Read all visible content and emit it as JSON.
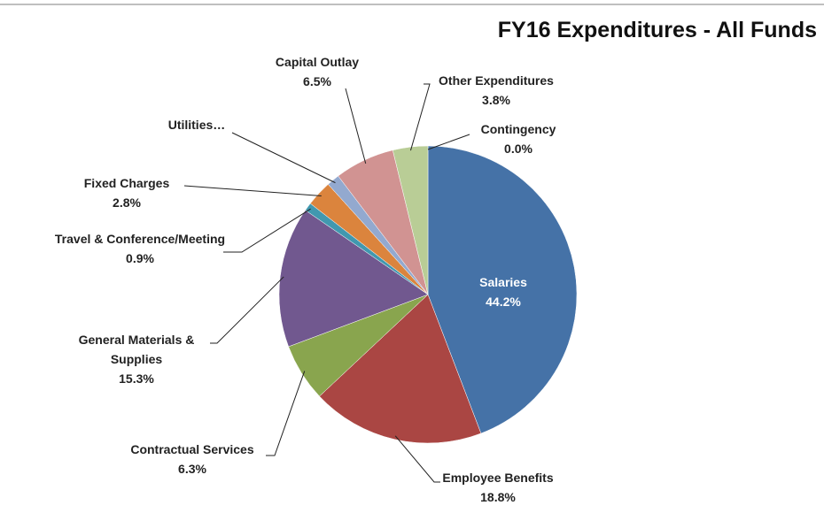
{
  "chart_data": {
    "type": "pie",
    "title": "FY16 Expenditures - All Funds",
    "categories": [
      "Salaries",
      "Employee Benefits",
      "Contractual Services",
      "General Materials & Supplies",
      "Travel & Conference/Meeting",
      "Fixed Charges",
      "Utilities…",
      "Capital Outlay",
      "Other Expenditures",
      "Contingency"
    ],
    "values": [
      44.2,
      18.8,
      6.3,
      15.3,
      0.9,
      2.8,
      1.4,
      6.5,
      3.8,
      0.0
    ],
    "value_labels": [
      "44.2%",
      "18.8%",
      "6.3%",
      "15.3%",
      "0.9%",
      "2.8%",
      null,
      "6.5%",
      "3.8%",
      "0.0%"
    ],
    "colors": [
      "#4572a7",
      "#aa4643",
      "#89a54e",
      "#71588f",
      "#4198af",
      "#db843d",
      "#93a9cf",
      "#d19392",
      "#b9cd96",
      "#a5b6d6"
    ]
  }
}
